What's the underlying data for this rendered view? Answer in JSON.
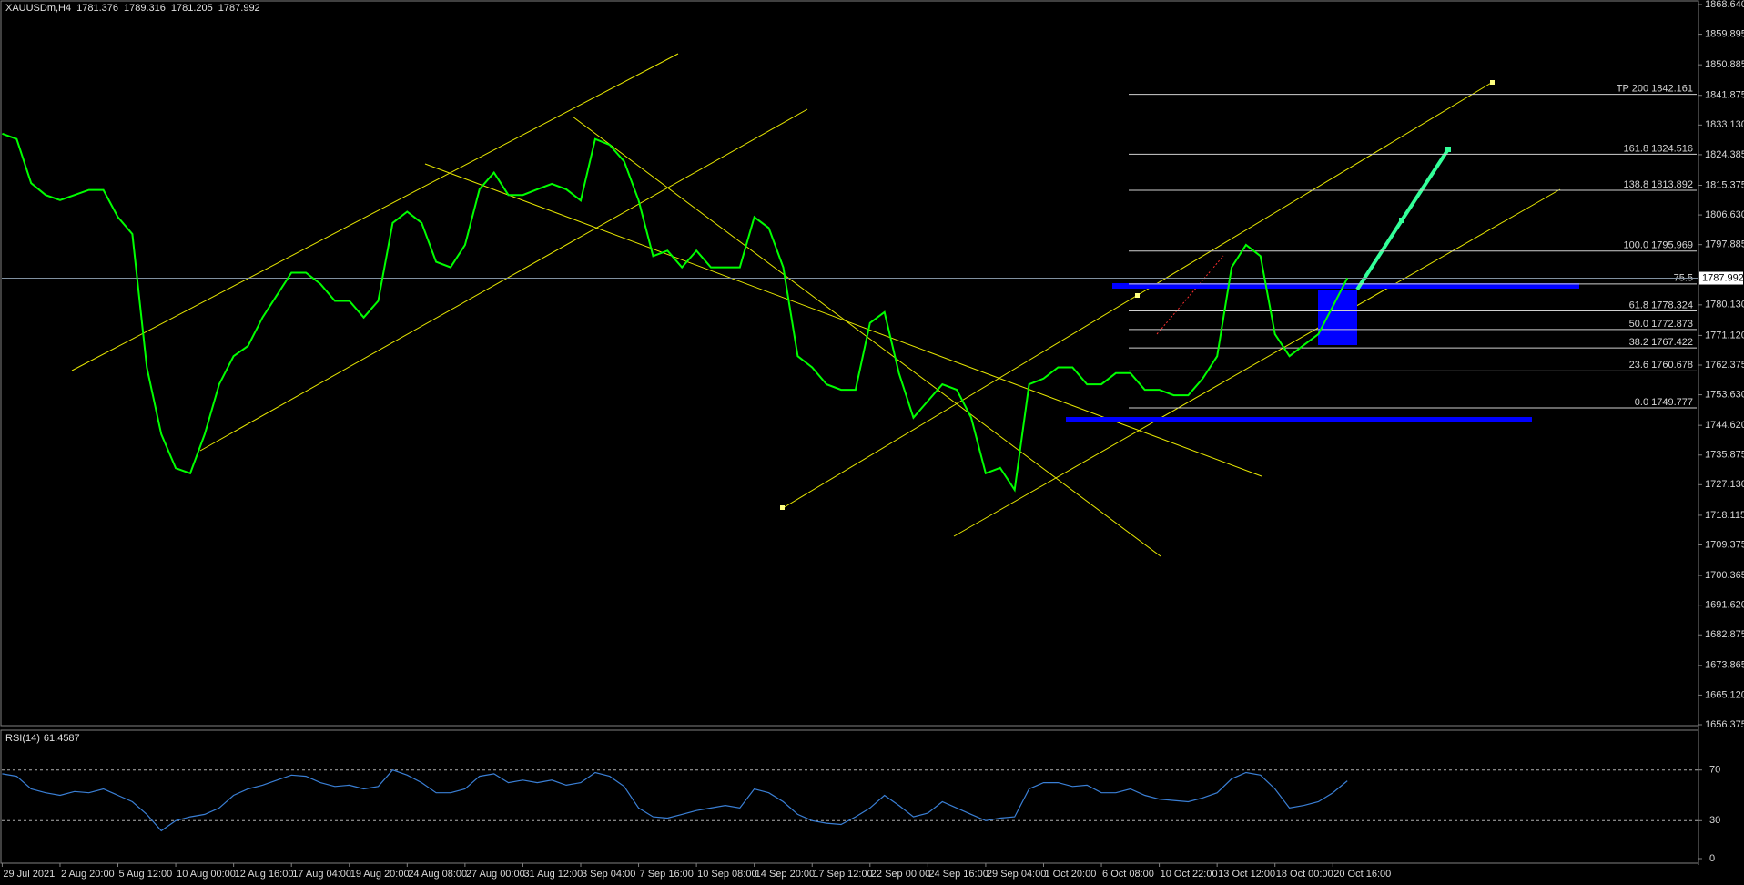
{
  "chart_data": [
    {
      "type": "line",
      "symbol": "XAUUSDm,H4",
      "ohlc": [
        1781.376,
        1789.316,
        1781.205,
        1787.992
      ],
      "categories": [
        "29 Jul 2021",
        null,
        null,
        null,
        "2 Aug 20:00",
        null,
        null,
        null,
        "5 Aug 12:00",
        null,
        null,
        null,
        "10 Aug 00:00",
        null,
        null,
        null,
        "12 Aug 16:00",
        null,
        null,
        null,
        "17 Aug 04:00",
        null,
        null,
        null,
        "19 Aug 20:00",
        null,
        null,
        null,
        "24 Aug 08:00",
        null,
        null,
        null,
        "27 Aug 00:00",
        null,
        null,
        null,
        "31 Aug 12:00",
        null,
        null,
        null,
        "3 Sep 04:00",
        null,
        null,
        null,
        "7 Sep 16:00",
        null,
        null,
        null,
        "10 Sep 08:00",
        null,
        null,
        null,
        "14 Sep 20:00",
        null,
        null,
        null,
        "17 Sep 12:00",
        null,
        null,
        null,
        "22 Sep 00:00",
        null,
        null,
        null,
        "24 Sep 16:00",
        null,
        null,
        null,
        "29 Sep 04:00",
        null,
        null,
        null,
        "1 Oct 20:00",
        null,
        null,
        null,
        "6 Oct 08:00",
        null,
        null,
        null,
        "10 Oct 22:00",
        null,
        null,
        null,
        "13 Oct 12:00",
        null,
        null,
        null,
        "18 Oct 00:00",
        null,
        null,
        null,
        "20 Oct 16:00",
        null
      ],
      "series": [
        {
          "color": "#00ff00",
          "values": [
            1830.6,
            1829,
            1816,
            1812.5,
            1811,
            1812.5,
            1814,
            1814,
            1806,
            1801,
            1761.7,
            1742,
            1732,
            1730.5,
            1742,
            1756.7,
            1765,
            1768,
            1776.4,
            1783,
            1789.6,
            1789.6,
            1786.3,
            1781.3,
            1781.3,
            1776.4,
            1781.3,
            1804.3,
            1807.6,
            1804.3,
            1792.8,
            1791.2,
            1797.8,
            1814.2,
            1819.1,
            1812.5,
            1812.5,
            1814.2,
            1815.8,
            1814.2,
            1810.9,
            1829,
            1827.3,
            1822.4,
            1810.9,
            1794.5,
            1796.1,
            1791.2,
            1796.1,
            1791.2,
            1791.2,
            1791.2,
            1806,
            1802.8,
            1791.2,
            1765,
            1761.7,
            1756.7,
            1755.1,
            1755.1,
            1774.8,
            1778,
            1760,
            1746.9,
            1751.8,
            1756.7,
            1755.1,
            1746.9,
            1730.5,
            1732.1,
            1725.6,
            1756.7,
            1758.4,
            1761.7,
            1761.7,
            1756.7,
            1756.7,
            1760,
            1760,
            1755.1,
            1755.1,
            1753.5,
            1753.5,
            1758.4,
            1765,
            1791.2,
            1797.8,
            1794.5,
            1771.5,
            1765,
            1768.3,
            1771.5,
            1779.7,
            1787.992
          ]
        }
      ],
      "ylim": [
        1656.375,
        1868.64
      ],
      "yticks": [
        {
          "value": 1868.64,
          "label": "1868.640"
        },
        1859.895,
        1850.885,
        1841.875,
        {
          "value": 1833.13,
          "label": "1833.130"
        },
        1824.385,
        1815.375,
        {
          "value": 1806.63,
          "label": "1806.630"
        },
        1797.885,
        {
          "value": 1780.13,
          "label": "1780.130"
        },
        {
          "value": 1771.12,
          "label": "1771.120"
        },
        1762.375,
        {
          "value": 1753.63,
          "label": "1753.630"
        },
        {
          "value": 1744.62,
          "label": "1744.620"
        },
        1735.875,
        {
          "value": 1727.13,
          "label": "1727.130"
        },
        1718.115,
        1709.375,
        1700.365,
        {
          "value": 1691.62,
          "label": "1691.620"
        },
        1682.875,
        1673.865,
        {
          "value": 1665.12,
          "label": "1665.120"
        },
        1656.375
      ],
      "fib_levels": [
        {
          "label": "TP 200 1842.161",
          "price": 1842.161
        },
        {
          "label": "161.8 1824.516",
          "price": 1824.516
        },
        {
          "label": "138.8 1813.892",
          "price": 1813.892
        },
        {
          "label": "100.0 1795.969",
          "price": 1795.969
        },
        {
          "label": "75.5",
          "price": 1786.3
        },
        {
          "label": "61.8 1778.324",
          "price": 1778.324
        },
        {
          "label": "50.0 1772.873",
          "price": 1772.873
        },
        {
          "label": "38.2 1767.422",
          "price": 1767.422
        },
        {
          "label": "23.6 1760.678",
          "price": 1760.678
        },
        {
          "label": "0.0 1749.777",
          "price": 1749.777
        }
      ]
    },
    {
      "type": "line",
      "title": "RSI(14)",
      "series": [
        {
          "color": "#3a7fd5",
          "values": [
            67,
            65,
            55,
            52,
            50,
            53,
            52,
            55,
            50,
            45,
            35,
            22,
            30,
            33,
            35,
            40,
            50,
            55,
            58,
            62,
            66,
            65,
            60,
            57,
            58,
            55,
            57,
            70,
            66,
            60,
            52,
            52,
            55,
            65,
            67,
            60,
            62,
            60,
            62,
            58,
            60,
            68,
            65,
            57,
            40,
            33,
            32,
            35,
            38,
            40,
            42,
            40,
            55,
            52,
            45,
            35,
            30,
            28,
            27,
            33,
            40,
            50,
            42,
            33,
            36,
            45,
            40,
            35,
            30,
            32,
            33,
            55,
            60,
            60,
            57,
            58,
            52,
            52,
            55,
            50,
            47,
            46,
            45,
            48,
            52,
            63,
            68,
            66,
            55,
            40,
            42,
            45,
            52,
            61.4587
          ]
        }
      ],
      "ylim": [
        0,
        100
      ],
      "yticks": [
        0,
        30,
        70
      ],
      "levels": [
        30,
        70
      ]
    }
  ]
}
